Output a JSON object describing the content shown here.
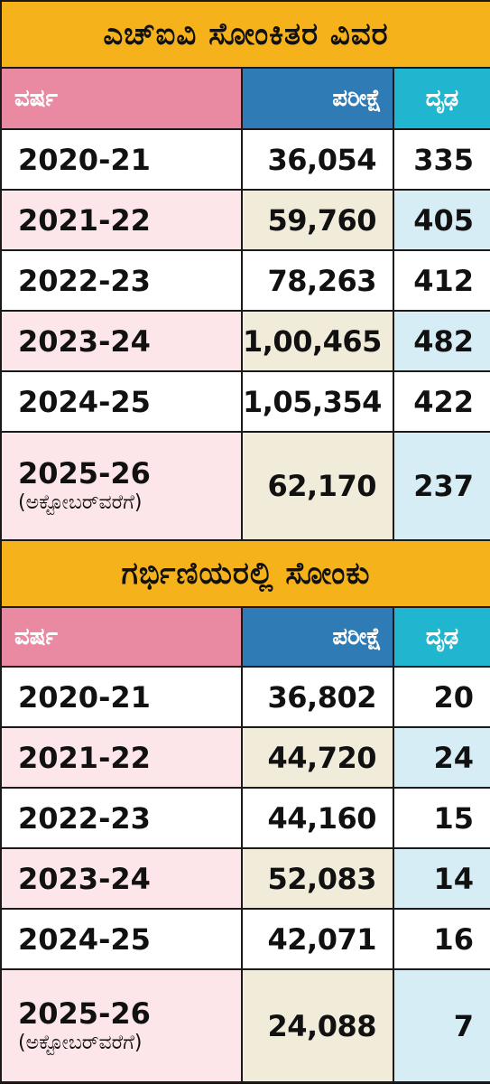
{
  "colors": {
    "title_bg": "#f6b21b",
    "header_year_bg": "#ea8aa2",
    "header_test_bg": "#2f7bb5",
    "header_positive_bg": "#21b6cf",
    "tint_year": "#fde6ea",
    "tint_test": "#f1ecda",
    "tint_positive": "#d6edf5",
    "border": "#1a1a1a"
  },
  "tables": [
    {
      "title": "ಎಚ್‌ಐವಿ ಸೋಂಕಿತರ ವಿವರ",
      "headers": {
        "year": "ವರ್ಷ",
        "test": "ಪರೀಕ್ಷೆ",
        "positive": "ದೃಢ"
      },
      "rows": [
        {
          "year": "2020-21",
          "note": "",
          "test": "36,054",
          "positive": "335"
        },
        {
          "year": "2021-22",
          "note": "",
          "test": "59,760",
          "positive": "405"
        },
        {
          "year": "2022-23",
          "note": "",
          "test": "78,263",
          "positive": "412"
        },
        {
          "year": "2023-24",
          "note": "",
          "test": "1,00,465",
          "positive": "482"
        },
        {
          "year": "2024-25",
          "note": "",
          "test": "1,05,354",
          "positive": "422"
        },
        {
          "year": "2025-26",
          "note": "(ಅಕ್ಟೋಬರ್‌ವರೆಗೆ)",
          "test": "62,170",
          "positive": "237"
        }
      ]
    },
    {
      "title": "ಗರ್ಭಿಣಿಯರಲ್ಲಿ ಸೋಂಕು",
      "headers": {
        "year": "ವರ್ಷ",
        "test": "ಪರೀಕ್ಷೆ",
        "positive": "ದೃಢ"
      },
      "rows": [
        {
          "year": "2020-21",
          "note": "",
          "test": "36,802",
          "positive": "20"
        },
        {
          "year": "2021-22",
          "note": "",
          "test": "44,720",
          "positive": "24"
        },
        {
          "year": "2022-23",
          "note": "",
          "test": "44,160",
          "positive": "15"
        },
        {
          "year": "2023-24",
          "note": "",
          "test": "52,083",
          "positive": "14"
        },
        {
          "year": "2024-25",
          "note": "",
          "test": "42,071",
          "positive": "16"
        },
        {
          "year": "2025-26",
          "note": "(ಅಕ್ಟೋಬರ್‌ವರೆಗೆ)",
          "test": "24,088",
          "positive": "7"
        }
      ]
    }
  ]
}
